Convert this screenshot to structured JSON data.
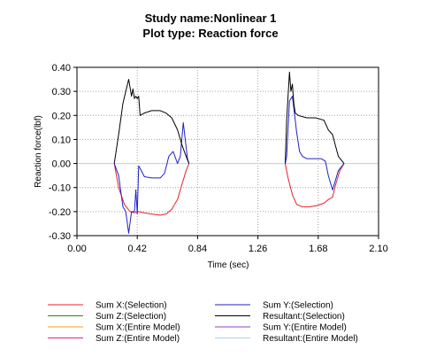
{
  "chart_data": {
    "type": "line",
    "title": "Study name:Nonlinear 1",
    "subtitle": "Plot type: Reaction force",
    "xlabel": "Time (sec)",
    "ylabel": "Reaction force(lbf)",
    "xlim": [
      0.0,
      2.1
    ],
    "ylim": [
      -0.3,
      0.4
    ],
    "xticks": [
      0.0,
      0.42,
      0.84,
      1.26,
      1.68,
      2.1
    ],
    "xtick_labels": [
      "0.00",
      "0.42",
      "0.84",
      "1.26",
      "1.68",
      "2.10"
    ],
    "yticks": [
      0.4,
      0.3,
      0.2,
      0.1,
      0.0,
      -0.1,
      -0.2,
      -0.3
    ],
    "ytick_labels": [
      "0.40",
      "0.30",
      "0.20",
      "0.10",
      "0.00",
      "-0.10",
      "-0.20",
      "-0.30"
    ],
    "grid": "dotted",
    "legend_position": "bottom",
    "zero_line_color": "#b7d9ee",
    "series": [
      {
        "name": "Sum X:(Selection)",
        "color": "#e8202a",
        "x": [
          0.26,
          0.29,
          0.33,
          0.37,
          0.4,
          0.43,
          0.47,
          0.52,
          0.58,
          0.62,
          0.66,
          0.7,
          0.73,
          0.76,
          0.78
        ],
        "y": [
          0.0,
          -0.1,
          -0.17,
          -0.2,
          -0.205,
          -0.2,
          -0.205,
          -0.21,
          -0.215,
          -0.21,
          -0.19,
          -0.15,
          -0.09,
          -0.03,
          0.0
        ],
        "x2": [
          1.45,
          1.47,
          1.5,
          1.53,
          1.57,
          1.62,
          1.67,
          1.72,
          1.75,
          1.78,
          1.8,
          1.83,
          1.86
        ],
        "y2": [
          0.0,
          -0.06,
          -0.13,
          -0.17,
          -0.18,
          -0.18,
          -0.175,
          -0.165,
          -0.15,
          -0.14,
          -0.09,
          -0.03,
          0.0
        ]
      },
      {
        "name": "Sum Y:(Selection)",
        "color": "#2020c8",
        "x": [
          0.26,
          0.29,
          0.32,
          0.34,
          0.36,
          0.38,
          0.4,
          0.41,
          0.42,
          0.43,
          0.44,
          0.47,
          0.52,
          0.58,
          0.61,
          0.64,
          0.67,
          0.7,
          0.72,
          0.74,
          0.77,
          0.78
        ],
        "y": [
          0.0,
          -0.05,
          -0.18,
          -0.2,
          -0.29,
          -0.2,
          -0.2,
          -0.11,
          -0.21,
          -0.01,
          -0.02,
          -0.055,
          -0.06,
          -0.06,
          -0.04,
          0.03,
          0.05,
          0.0,
          0.03,
          0.17,
          0.02,
          0.0
        ],
        "x2": [
          1.45,
          1.46,
          1.48,
          1.5,
          1.53,
          1.55,
          1.57,
          1.6,
          1.65,
          1.7,
          1.73,
          1.75,
          1.78,
          1.82,
          1.86
        ],
        "y2": [
          0.0,
          0.03,
          0.26,
          0.28,
          0.13,
          0.05,
          0.03,
          0.02,
          0.02,
          0.02,
          0.01,
          -0.05,
          -0.11,
          -0.03,
          0.0
        ]
      },
      {
        "name": "Resultant:(Selection)",
        "color": "#000000",
        "x": [
          0.26,
          0.29,
          0.32,
          0.34,
          0.36,
          0.38,
          0.39,
          0.4,
          0.41,
          0.42,
          0.43,
          0.44,
          0.47,
          0.52,
          0.58,
          0.62,
          0.66,
          0.7,
          0.73,
          0.76,
          0.78
        ],
        "y": [
          0.0,
          0.12,
          0.25,
          0.3,
          0.35,
          0.28,
          0.31,
          0.27,
          0.28,
          0.27,
          0.28,
          0.2,
          0.21,
          0.22,
          0.22,
          0.21,
          0.19,
          0.14,
          0.08,
          0.03,
          0.0
        ],
        "x2": [
          1.45,
          1.46,
          1.48,
          1.49,
          1.5,
          1.51,
          1.52,
          1.54,
          1.6,
          1.66,
          1.72,
          1.75,
          1.78,
          1.82,
          1.86
        ],
        "y2": [
          0.0,
          0.18,
          0.38,
          0.3,
          0.33,
          0.25,
          0.21,
          0.2,
          0.19,
          0.19,
          0.18,
          0.14,
          0.12,
          0.03,
          0.0
        ]
      }
    ],
    "legend": [
      {
        "name": "Sum X:(Selection)",
        "color": "#e8202a"
      },
      {
        "name": "Sum Y:(Selection)",
        "color": "#2020c8"
      },
      {
        "name": "Sum Z:(Selection)",
        "color": "#208a20"
      },
      {
        "name": "Resultant:(Selection)",
        "color": "#000000"
      },
      {
        "name": "Sum X:(Entire Model)",
        "color": "#f0a020"
      },
      {
        "name": "Sum Y:(Entire Model)",
        "color": "#9040c0"
      },
      {
        "name": "Sum Z:(Entire Model)",
        "color": "#e020a0"
      },
      {
        "name": "Resultant:(Entire Model)",
        "color": "#a8d4ec"
      }
    ]
  }
}
